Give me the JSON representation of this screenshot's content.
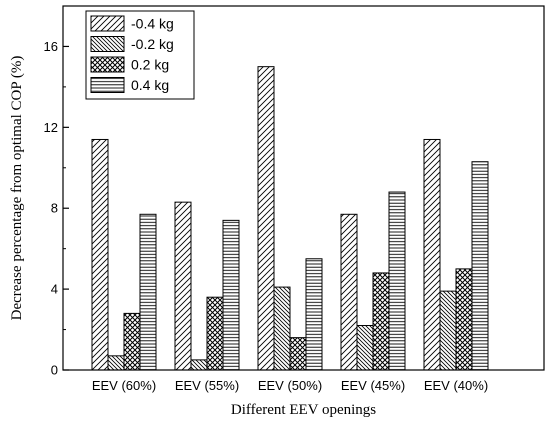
{
  "chart_data": {
    "type": "bar",
    "title": "",
    "xlabel": "Different EEV openings",
    "ylabel": "Decrease percentage from optimal COP (%)",
    "categories": [
      "EEV (60%)",
      "EEV (55%)",
      "EEV (50%)",
      "EEV (45%)",
      "EEV (40%)"
    ],
    "ylim": [
      0,
      18
    ],
    "yticks": [
      0,
      4,
      8,
      12,
      16
    ],
    "ytick_labels": [
      "0",
      "4",
      "8",
      "12",
      "16"
    ],
    "grid": false,
    "legend_position": "top-left",
    "series": [
      {
        "name": "-0.4 kg",
        "pattern": "diagonal-forward",
        "values": [
          11.4,
          8.3,
          15.0,
          7.7,
          11.4
        ]
      },
      {
        "name": "-0.2 kg",
        "pattern": "diagonal-back",
        "values": [
          0.7,
          0.5,
          4.1,
          2.2,
          3.9
        ]
      },
      {
        "name": "0.2 kg",
        "pattern": "crosshatch",
        "values": [
          2.8,
          3.6,
          1.6,
          4.8,
          5.0
        ]
      },
      {
        "name": "0.4 kg",
        "pattern": "horizontal",
        "values": [
          7.7,
          7.4,
          5.5,
          8.8,
          10.3
        ]
      }
    ],
    "colors": {
      "line": "#000000",
      "background": "#ffffff"
    }
  }
}
